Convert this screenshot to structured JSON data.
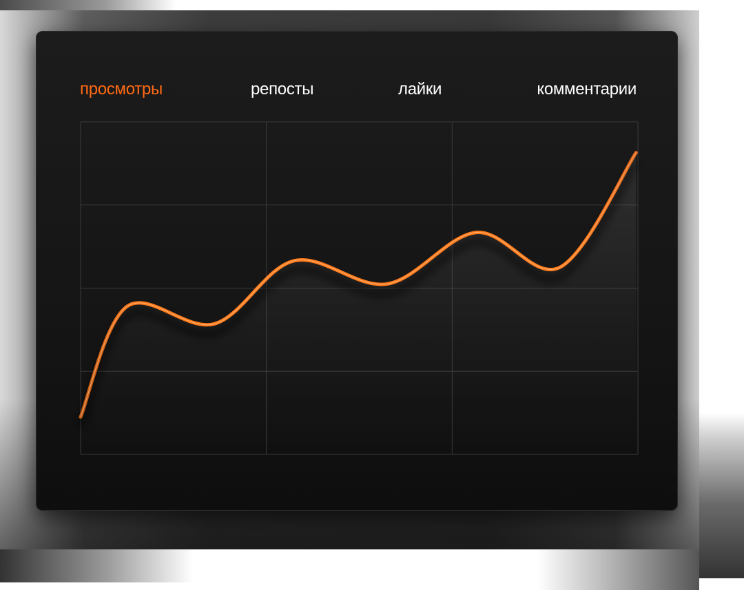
{
  "tabs": [
    {
      "label": "просмотры",
      "active": true
    },
    {
      "label": "репосты",
      "active": false
    },
    {
      "label": "лайки",
      "active": false
    },
    {
      "label": "комментарии",
      "active": false
    }
  ],
  "colors": {
    "accent": "#ff6a13",
    "panel": "#161616",
    "grid": "#3a3a3a",
    "text": "#ffffff"
  },
  "chart_data": {
    "type": "line",
    "title": "",
    "xlabel": "",
    "ylabel": "",
    "grid": true,
    "xlim": [
      0,
      3
    ],
    "ylim": [
      0,
      4
    ],
    "series": [
      {
        "x": [
          0.0,
          0.25,
          0.72,
          1.15,
          1.65,
          2.13,
          2.58,
          2.99
        ],
        "values": [
          0.45,
          1.78,
          1.57,
          2.33,
          2.05,
          2.67,
          2.25,
          3.63
        ]
      }
    ]
  }
}
